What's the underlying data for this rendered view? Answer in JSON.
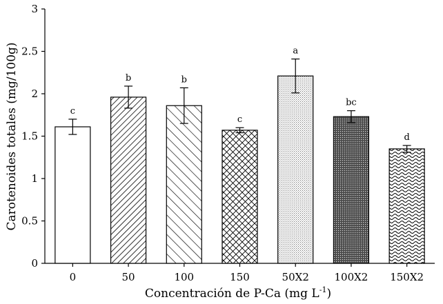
{
  "chart_data": {
    "type": "bar",
    "title": "",
    "xlabel": "Concentración de P-Ca (mg L",
    "xlabel_superscript": "-1",
    "xlabel_suffix": ")",
    "ylabel": "Carotenoides totales (mg/100g)",
    "ylim": [
      0,
      3
    ],
    "yticks": [
      0,
      0.5,
      1,
      1.5,
      2,
      2.5,
      3
    ],
    "ytick_labels": [
      "0",
      "0.5",
      "1",
      "1.5",
      "2",
      "2.5",
      "3"
    ],
    "categories": [
      "0",
      "50",
      "100",
      "150",
      "50X2",
      "100X2",
      "150X2"
    ],
    "values": [
      1.61,
      1.96,
      1.86,
      1.57,
      2.21,
      1.73,
      1.35
    ],
    "errors": [
      0.09,
      0.13,
      0.21,
      0.03,
      0.2,
      0.07,
      0.04
    ],
    "letters": [
      "c",
      "b",
      "b",
      "c",
      "a",
      "bc",
      "d"
    ],
    "patterns": [
      "none",
      "diagonal-dense",
      "diagonal-sparse",
      "crosshatch",
      "dots",
      "dense-dots",
      "waves"
    ],
    "bar_color": "#ffffff",
    "edge_color": "#000000",
    "grid": false,
    "legend": false
  }
}
